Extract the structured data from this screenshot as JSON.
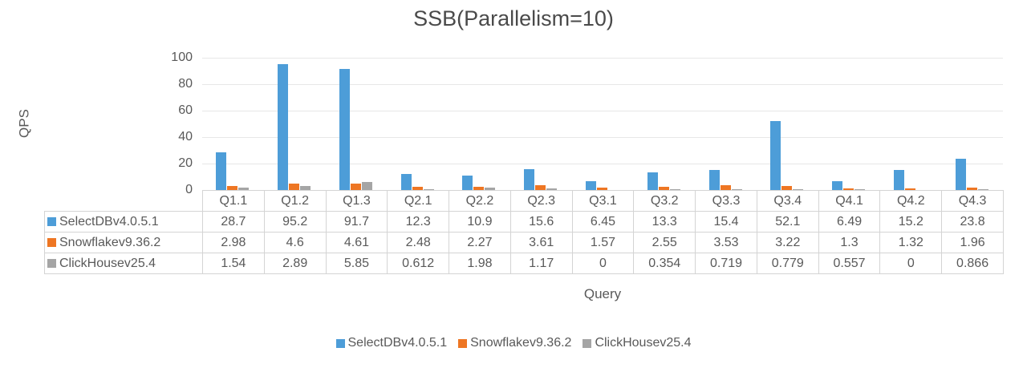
{
  "chart_data": {
    "type": "bar",
    "title": "SSB(Parallelism=10)",
    "xlabel": "Query",
    "ylabel": "QPS",
    "ylim": [
      0,
      100
    ],
    "ytick_step": 20,
    "grid": true,
    "legend_position": "bottom",
    "categories": [
      "Q1.1",
      "Q1.2",
      "Q1.3",
      "Q2.1",
      "Q2.2",
      "Q2.3",
      "Q3.1",
      "Q3.2",
      "Q3.3",
      "Q3.4",
      "Q4.1",
      "Q4.2",
      "Q4.3"
    ],
    "series": [
      {
        "name": "SelectDBv4.0.5.1",
        "color": "#4d9dd8",
        "values": [
          28.7,
          95.2,
          91.7,
          12.3,
          10.9,
          15.6,
          6.45,
          13.3,
          15.4,
          52.1,
          6.49,
          15.2,
          23.8
        ]
      },
      {
        "name": "Snowflakev9.36.2",
        "color": "#ee7623",
        "values": [
          2.98,
          4.6,
          4.61,
          2.48,
          2.27,
          3.61,
          1.57,
          2.55,
          3.53,
          3.22,
          1.3,
          1.32,
          1.96
        ]
      },
      {
        "name": "ClickHousev25.4",
        "color": "#a5a5a5",
        "values": [
          1.54,
          2.89,
          5.85,
          0.612,
          1.98,
          1.17,
          0,
          0.354,
          0.719,
          0.779,
          0.557,
          0,
          0.866
        ]
      }
    ]
  }
}
